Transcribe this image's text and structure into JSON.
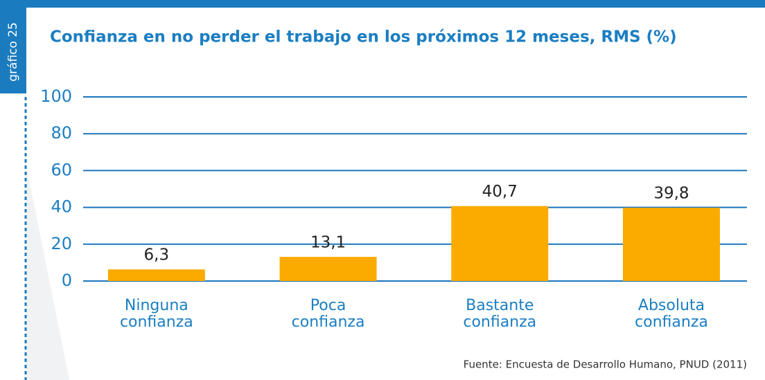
{
  "chart_data": {
    "type": "bar",
    "side_label": "gráfico 25",
    "title": "Confianza en no perder el trabajo en los próximos 12 meses, RMS (%)",
    "categories": [
      "Ninguna confianza",
      "Poca confianza",
      "Bastante confianza",
      "Absoluta confianza"
    ],
    "values": [
      6.3,
      13.1,
      40.7,
      39.8
    ],
    "value_labels": [
      "6,3",
      "13,1",
      "40,7",
      "39,8"
    ],
    "color": "#fbab00",
    "ylim": [
      0,
      100
    ],
    "yticks": [
      0,
      20,
      40,
      60,
      80,
      100
    ],
    "grid": true,
    "source": "Fuente: Encuesta de Desarrollo Humano, PNUD (2011)"
  }
}
